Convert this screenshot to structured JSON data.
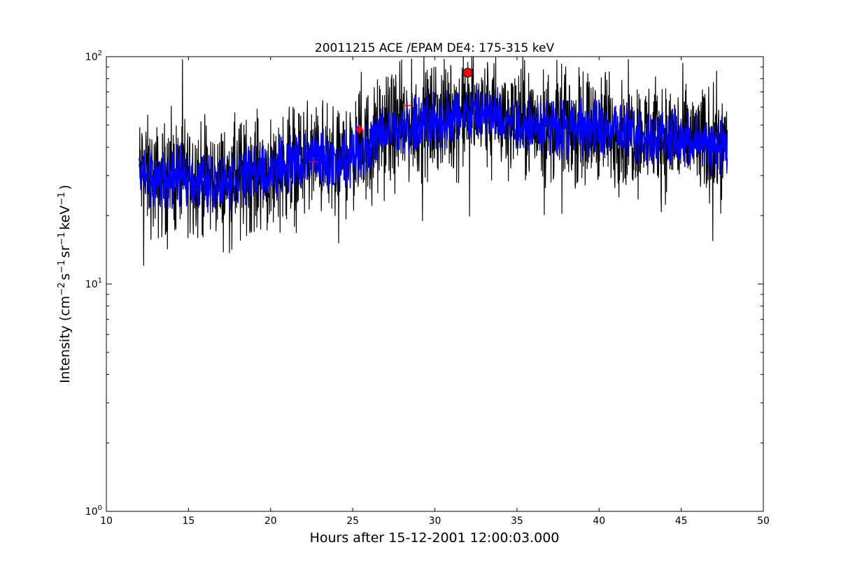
{
  "chart_data": {
    "type": "line",
    "title": "20011215 ACE /EPAM DE4: 175-315 keV",
    "xlabel": "Hours after 15-12-2001 12:00:03.000",
    "ylabel": {
      "prefix": "Intensity (cm",
      "sup1": "−2",
      "mid1": "s",
      "sup2": "−1",
      "mid2": "sr",
      "sup3": "−1",
      "mid3": "keV",
      "sup4": "−1",
      "suffix": ")"
    },
    "xlim": [
      10,
      50
    ],
    "ylim": [
      1,
      100
    ],
    "yscale": "log",
    "grid": false,
    "x_ticks": [
      10,
      15,
      20,
      25,
      30,
      35,
      40,
      45,
      50
    ],
    "x_tick_labels": [
      "10",
      "15",
      "20",
      "25",
      "30",
      "35",
      "40",
      "45",
      "50"
    ],
    "y_ticks": [
      {
        "value": 1,
        "base": "10",
        "exp": "0"
      },
      {
        "value": 10,
        "base": "10",
        "exp": "1"
      },
      {
        "value": 100,
        "base": "10",
        "exp": "2"
      }
    ],
    "series": [
      {
        "color": "#000000",
        "style": "noisy-raw",
        "x": [
          12.0,
          13.0,
          14.0,
          15.0,
          16.0,
          17.0,
          18.0,
          19.0,
          20.0,
          21.0,
          22.0,
          23.0,
          24.0,
          25.0,
          26.0,
          27.0,
          28.0,
          29.0,
          30.0,
          31.0,
          32.0,
          33.0,
          34.0,
          35.0,
          36.0,
          37.0,
          38.0,
          39.0,
          40.0,
          41.0,
          42.0,
          43.0,
          44.0,
          45.0,
          46.0,
          47.0,
          47.8
        ],
        "y": [
          32,
          28,
          29,
          31,
          28,
          28,
          30,
          31,
          31,
          34,
          36,
          36,
          33,
          38,
          41,
          47,
          49,
          51,
          52,
          55,
          57,
          56,
          55,
          53,
          51,
          50,
          49,
          48,
          49,
          47,
          46,
          45,
          44,
          43,
          42,
          41,
          40
        ]
      },
      {
        "color": "#0000ff",
        "style": "smoothed",
        "x": [
          12.0,
          13.0,
          14.0,
          15.0,
          16.0,
          17.0,
          18.0,
          19.0,
          20.0,
          21.0,
          22.0,
          23.0,
          24.0,
          25.0,
          26.0,
          27.0,
          28.0,
          29.0,
          30.0,
          31.0,
          32.0,
          33.0,
          34.0,
          35.0,
          36.0,
          37.0,
          38.0,
          39.0,
          40.0,
          41.0,
          42.0,
          43.0,
          44.0,
          45.0,
          46.0,
          47.0,
          47.8
        ],
        "y": [
          31,
          28,
          29,
          30,
          28,
          28,
          30,
          31,
          31,
          34,
          35,
          36,
          33,
          38,
          41,
          46,
          48,
          50,
          52,
          54,
          56,
          55,
          54,
          52,
          51,
          50,
          49,
          48,
          48,
          47,
          46,
          45,
          44,
          43,
          42,
          41,
          39
        ]
      }
    ],
    "markers": [
      {
        "shape": "plus",
        "x": 22.6,
        "y": 34.5,
        "color": "#ff0000"
      },
      {
        "shape": "diamond",
        "x": 25.4,
        "y": 48,
        "color": "#ff0000"
      },
      {
        "shape": "plus",
        "x": 28.3,
        "y": 61,
        "color": "#ff0000"
      },
      {
        "shape": "circle",
        "x": 32.0,
        "y": 85,
        "color": "#ff0000"
      }
    ]
  }
}
